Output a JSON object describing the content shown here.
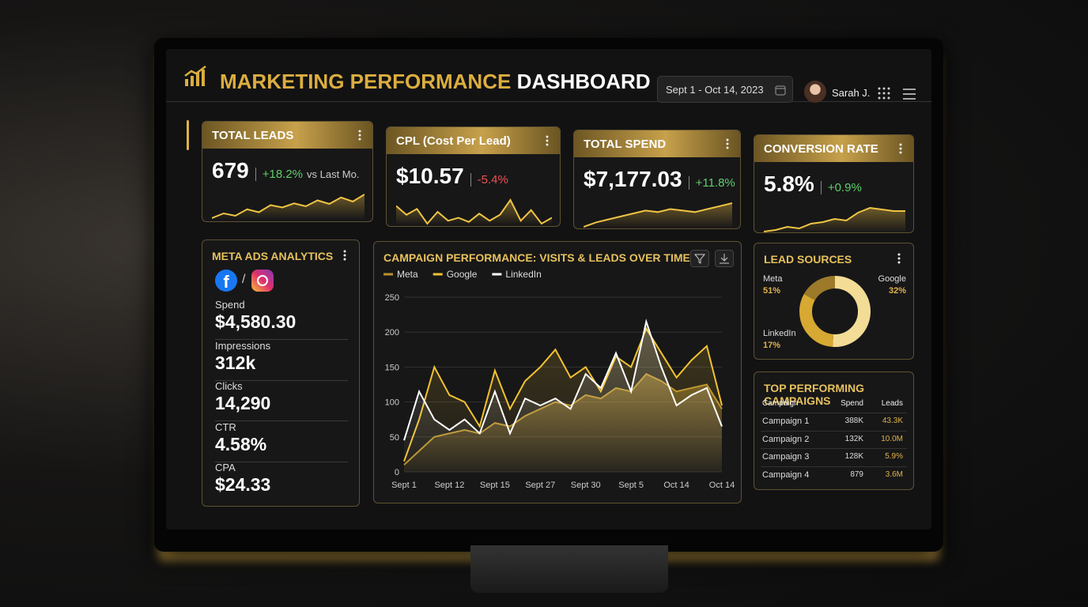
{
  "header": {
    "title_gold": "MARKETING PERFORMANCE",
    "title_white": "DASHBOARD",
    "date_range": "Sept 1 - Oct 14, 2023",
    "user": "Sarah J."
  },
  "kpis": [
    {
      "label": "TOTAL LEADS",
      "value": "679",
      "change": "+18.2%",
      "note": "vs Last Mo.",
      "change_color": "#5fcf6a",
      "spark": [
        20,
        28,
        24,
        35,
        30,
        42,
        38,
        45,
        40,
        50,
        44,
        55,
        48,
        60
      ]
    },
    {
      "label": "CPL (Cost Per Lead)",
      "value": "$10.57",
      "change": "-5.4%",
      "change_color": "#ef5350",
      "spark": [
        55,
        40,
        50,
        25,
        45,
        30,
        35,
        28,
        42,
        30,
        40,
        65,
        30,
        48,
        25,
        35
      ]
    },
    {
      "label": "TOTAL SPEND",
      "value": "$7,177.03",
      "change": "+11.8%",
      "change_color": "#5fcf6a",
      "spark": [
        20,
        26,
        30,
        34,
        38,
        42,
        40,
        44,
        42,
        40,
        44,
        48,
        52
      ]
    },
    {
      "label": "CONVERSION RATE",
      "value": "5.8%",
      "change": "+0.9%",
      "change_color": "#5fcf6a",
      "spark": [
        30,
        31,
        33,
        32,
        35,
        36,
        38,
        37,
        42,
        45,
        44,
        43,
        43
      ]
    }
  ],
  "meta_ads": {
    "title": "META ADS ANALYTICS",
    "separator": "/",
    "metrics": [
      {
        "label": "Spend",
        "value": "$4,580.30"
      },
      {
        "label": "Impressions",
        "value": "312k"
      },
      {
        "label": "Clicks",
        "value": "14,290"
      },
      {
        "label": "CTR",
        "value": "4.58%"
      },
      {
        "label": "CPA",
        "value": "$24.33"
      }
    ]
  },
  "chart_data": [
    {
      "type": "line",
      "title": "CAMPAIGN PERFORMANCE: VISITS & LEADS OVER TIME",
      "categories": [
        "Sept 1",
        null,
        null,
        "Sept 12",
        null,
        null,
        "Sept 15",
        null,
        null,
        "Sept 27",
        null,
        null,
        "Sept 30",
        null,
        null,
        "Sept 5",
        null,
        null,
        "Oct 14",
        null,
        null,
        "Oct 14"
      ],
      "series": [
        {
          "name": "Meta",
          "color": "#b8912f",
          "style": "area",
          "values": [
            10,
            30,
            50,
            55,
            60,
            55,
            70,
            65,
            80,
            90,
            100,
            95,
            110,
            105,
            120,
            115,
            140,
            130,
            115,
            120,
            125,
            90
          ]
        },
        {
          "name": "Google",
          "color": "#f2c230",
          "values": [
            15,
            75,
            150,
            110,
            100,
            65,
            145,
            90,
            130,
            150,
            175,
            135,
            150,
            115,
            165,
            150,
            205,
            170,
            135,
            160,
            180,
            95
          ]
        },
        {
          "name": "LinkedIn",
          "color": "#ffffff",
          "values": [
            45,
            115,
            75,
            60,
            75,
            55,
            115,
            55,
            105,
            95,
            105,
            90,
            140,
            120,
            170,
            115,
            215,
            150,
            95,
            110,
            120,
            65
          ]
        }
      ],
      "ylim": [
        0,
        250
      ],
      "yticks": [
        0,
        50,
        100,
        150,
        200,
        250
      ],
      "grid": true
    },
    {
      "type": "pie",
      "title": "LEAD SOURCES",
      "categories": [
        "Meta",
        "Google",
        "LinkedIn"
      ],
      "values": [
        51,
        32,
        17
      ],
      "value_labels": [
        "51%",
        "32%",
        "17%"
      ],
      "colors": [
        "#f3dc95",
        "#d7a932",
        "#9c7a2a"
      ]
    }
  ],
  "campaigns": {
    "title": "TOP PERFORMING CAMPAIGNS",
    "columns": [
      "Campaign",
      "Spend",
      "Leads"
    ],
    "rows": [
      [
        "Campaign 1",
        "388K",
        "43.3K"
      ],
      [
        "Campaign 2",
        "132K",
        "10.0M"
      ],
      [
        "Campaign 3",
        "128K",
        "5.9%"
      ],
      [
        "Campaign 4",
        "879",
        "3.6M"
      ]
    ]
  }
}
